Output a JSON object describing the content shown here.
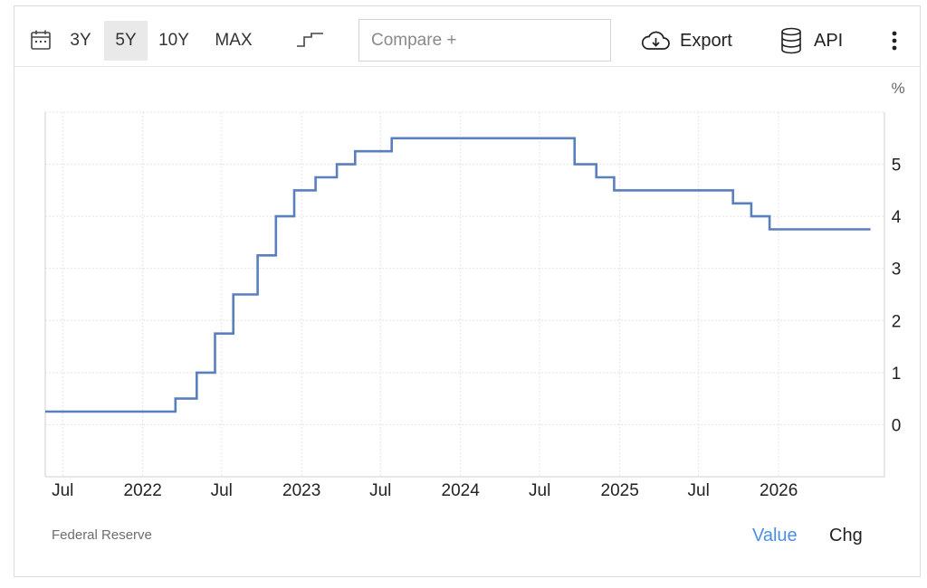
{
  "toolbar": {
    "ranges": [
      {
        "label": "3Y",
        "active": false
      },
      {
        "label": "5Y",
        "active": true
      },
      {
        "label": "10Y",
        "active": false
      },
      {
        "label": "MAX",
        "active": false
      }
    ],
    "compare_placeholder": "Compare +",
    "export_label": "Export",
    "api_label": "API",
    "icons": [
      "calendar-icon",
      "step-line-icon",
      "cloud-download-icon",
      "database-icon",
      "more-vertical-icon"
    ]
  },
  "footer": {
    "source": "Federal Reserve",
    "tab_value": "Value",
    "tab_chg": "Chg",
    "active_tab_color": "#4a90e2"
  },
  "chart_data": {
    "type": "line",
    "step": true,
    "unit_label": "%",
    "line_color": "#5a7fbd",
    "grid": true,
    "y_axis_side": "right",
    "ylim": [
      -1,
      6
    ],
    "y_ticks": [
      0,
      1,
      2,
      3,
      4,
      5
    ],
    "x_range": [
      "2021-05-22",
      "2026-09-01"
    ],
    "x_ticks": [
      {
        "date": "2021-07-01",
        "label": "Jul"
      },
      {
        "date": "2022-01-01",
        "label": "2022"
      },
      {
        "date": "2022-07-01",
        "label": "Jul"
      },
      {
        "date": "2023-01-01",
        "label": "2023"
      },
      {
        "date": "2023-07-01",
        "label": "Jul"
      },
      {
        "date": "2024-01-01",
        "label": "2024"
      },
      {
        "date": "2024-07-01",
        "label": "Jul"
      },
      {
        "date": "2025-01-01",
        "label": "2025"
      },
      {
        "date": "2025-07-01",
        "label": "Jul"
      },
      {
        "date": "2026-01-01",
        "label": "2026"
      }
    ],
    "series": [
      {
        "points": [
          {
            "x": "2021-05-22",
            "y": 0.25
          },
          {
            "x": "2022-03-17",
            "y": 0.5
          },
          {
            "x": "2022-05-05",
            "y": 1.0
          },
          {
            "x": "2022-06-16",
            "y": 1.75
          },
          {
            "x": "2022-07-28",
            "y": 2.5
          },
          {
            "x": "2022-09-22",
            "y": 3.25
          },
          {
            "x": "2022-11-03",
            "y": 4.0
          },
          {
            "x": "2022-12-15",
            "y": 4.5
          },
          {
            "x": "2023-02-02",
            "y": 4.75
          },
          {
            "x": "2023-03-23",
            "y": 5.0
          },
          {
            "x": "2023-05-04",
            "y": 5.25
          },
          {
            "x": "2023-07-27",
            "y": 5.5
          },
          {
            "x": "2024-09-19",
            "y": 5.0
          },
          {
            "x": "2024-11-08",
            "y": 4.75
          },
          {
            "x": "2024-12-19",
            "y": 4.5
          },
          {
            "x": "2025-09-18",
            "y": 4.25
          },
          {
            "x": "2025-10-30",
            "y": 4.0
          },
          {
            "x": "2025-12-11",
            "y": 3.75
          },
          {
            "x": "2026-07-31",
            "y": 3.75
          }
        ]
      }
    ]
  }
}
